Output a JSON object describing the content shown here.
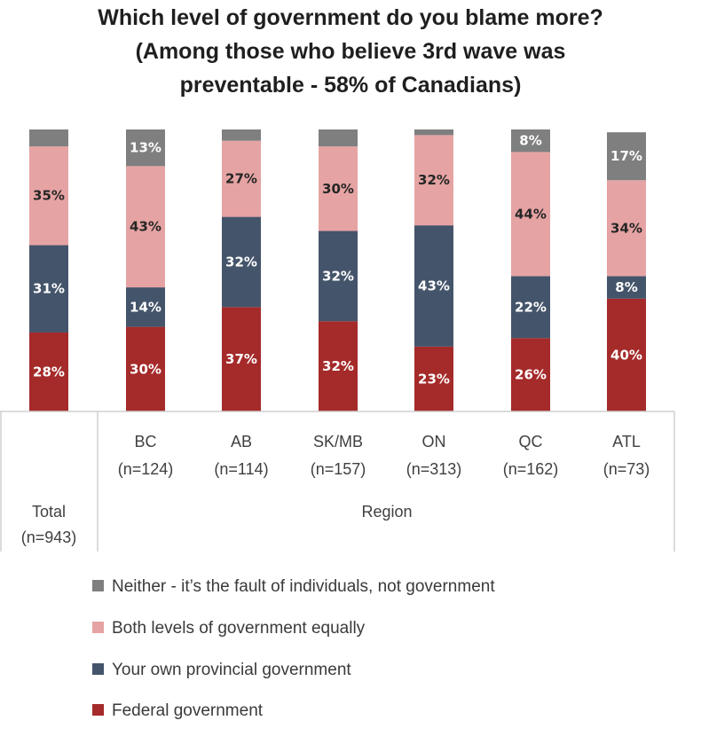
{
  "chart_data": {
    "type": "bar",
    "stacked": true,
    "orientation": "vertical",
    "title_lines": [
      "Which level of government do you blame more?",
      "(Among those who believe 3rd wave was",
      "preventable - 58% of Canadians)"
    ],
    "categories": [
      {
        "name": "Total",
        "n": "(n=943)"
      },
      {
        "name": "BC",
        "n": "(n=124)"
      },
      {
        "name": "AB",
        "n": "(n=114)"
      },
      {
        "name": "SK/MB",
        "n": "(n=157)"
      },
      {
        "name": "ON",
        "n": "(n=313)"
      },
      {
        "name": "QC",
        "n": "(n=162)"
      },
      {
        "name": "ATL",
        "n": "(n=73)"
      }
    ],
    "group_label": "Region",
    "series": [
      {
        "name": "Federal government",
        "color": "#a52a2a",
        "label_color": "#ffffff",
        "values": [
          28,
          30,
          37,
          32,
          23,
          26,
          40
        ],
        "labels": [
          "28%",
          "30%",
          "37%",
          "32%",
          "23%",
          "26%",
          "40%"
        ]
      },
      {
        "name": "Your own provincial government",
        "color": "#44546a",
        "label_color": "#ffffff",
        "values": [
          31,
          14,
          32,
          32,
          43,
          22,
          8
        ],
        "labels": [
          "31%",
          "14%",
          "32%",
          "32%",
          "43%",
          "22%",
          "8%"
        ]
      },
      {
        "name": "Both levels of government equally",
        "color": "#e6a3a3",
        "label_color": "#262626",
        "values": [
          35,
          43,
          27,
          30,
          32,
          44,
          34
        ],
        "labels": [
          "35%",
          "43%",
          "27%",
          "30%",
          "32%",
          "44%",
          "34%"
        ]
      },
      {
        "name": "Neither - it’s the fault of individuals, not government",
        "color": "#7f7f7f",
        "label_color": "#ffffff",
        "values": [
          6,
          13,
          4,
          6,
          2,
          8,
          17
        ],
        "labels": [
          "",
          "13%",
          "",
          "",
          "",
          "8%",
          "17%"
        ]
      }
    ],
    "legend_order": [
      3,
      2,
      1,
      0
    ],
    "ylim": [
      0,
      100
    ]
  }
}
